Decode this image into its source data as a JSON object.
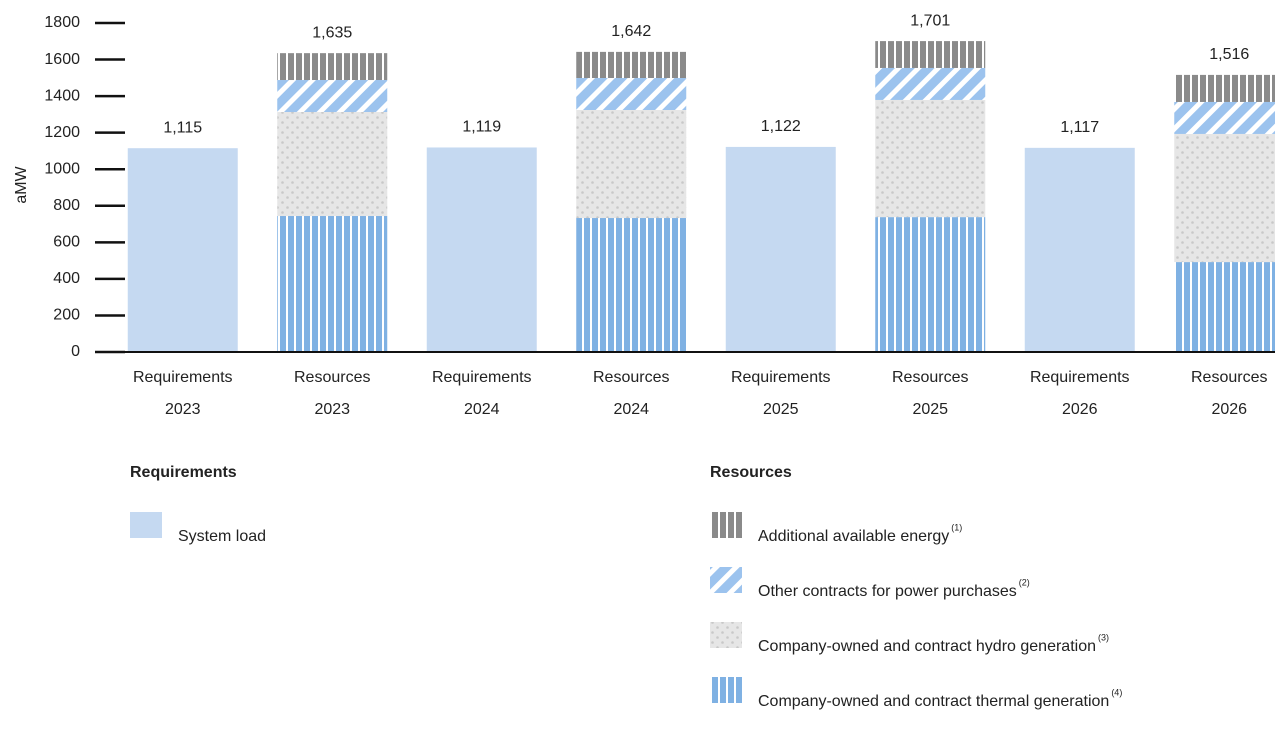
{
  "chart_data": {
    "type": "stacked-bar",
    "y_label": "aMW",
    "categories": [
      "Requirements 2023",
      "Resources 2023",
      "Requirements 2024",
      "Resources 2024",
      "Requirements 2025",
      "Resources 2025",
      "Requirements 2026",
      "Resources 2026"
    ],
    "ylim": [
      0,
      1800
    ],
    "yticks": [
      0,
      200,
      400,
      600,
      800,
      1000,
      1200,
      1400,
      1600,
      1800
    ],
    "legend_groups": [
      "Requirements",
      "Resources"
    ],
    "series": [
      {
        "name": "System load",
        "group": 0,
        "color": "#c5d9f1",
        "pattern": "solid",
        "values": [
          1115,
          null,
          1119,
          null,
          1122,
          null,
          1117,
          null
        ],
        "value_labels": [
          "1,115",
          null,
          "1,119",
          null,
          "1,122",
          null,
          "1,117",
          null
        ]
      },
      {
        "name": "Company-owned and contract thermal generation",
        "footnote": "(4)",
        "group": 1,
        "color": "#7fb1e3",
        "pattern": "vertical",
        "values": [
          null,
          744,
          null,
          733,
          null,
          738,
          null,
          492
        ]
      },
      {
        "name": "Company-owned and contract hydro generation",
        "footnote": "(3)",
        "group": 1,
        "color": "#c8c8c8",
        "pattern": "dots",
        "values": [
          null,
          569,
          null,
          591,
          null,
          641,
          null,
          701
        ]
      },
      {
        "name": "Other contracts for power purchases",
        "footnote": "(2)",
        "group": 1,
        "color": "#9cc3ee",
        "pattern": "diagonal",
        "values": [
          null,
          175,
          null,
          175,
          null,
          175,
          null,
          175
        ]
      },
      {
        "name": "Additional available energy",
        "footnote": "(1)",
        "group": 1,
        "color": "#8a8a8a",
        "pattern": "vertical",
        "values": [
          null,
          147,
          null,
          143,
          null,
          147,
          null,
          148
        ]
      }
    ],
    "totals": [
      null,
      1635,
      null,
      1642,
      null,
      1701,
      null,
      1516
    ],
    "total_labels": [
      null,
      "1,635",
      null,
      "1,642",
      null,
      "1,701",
      null,
      "1,516"
    ]
  }
}
